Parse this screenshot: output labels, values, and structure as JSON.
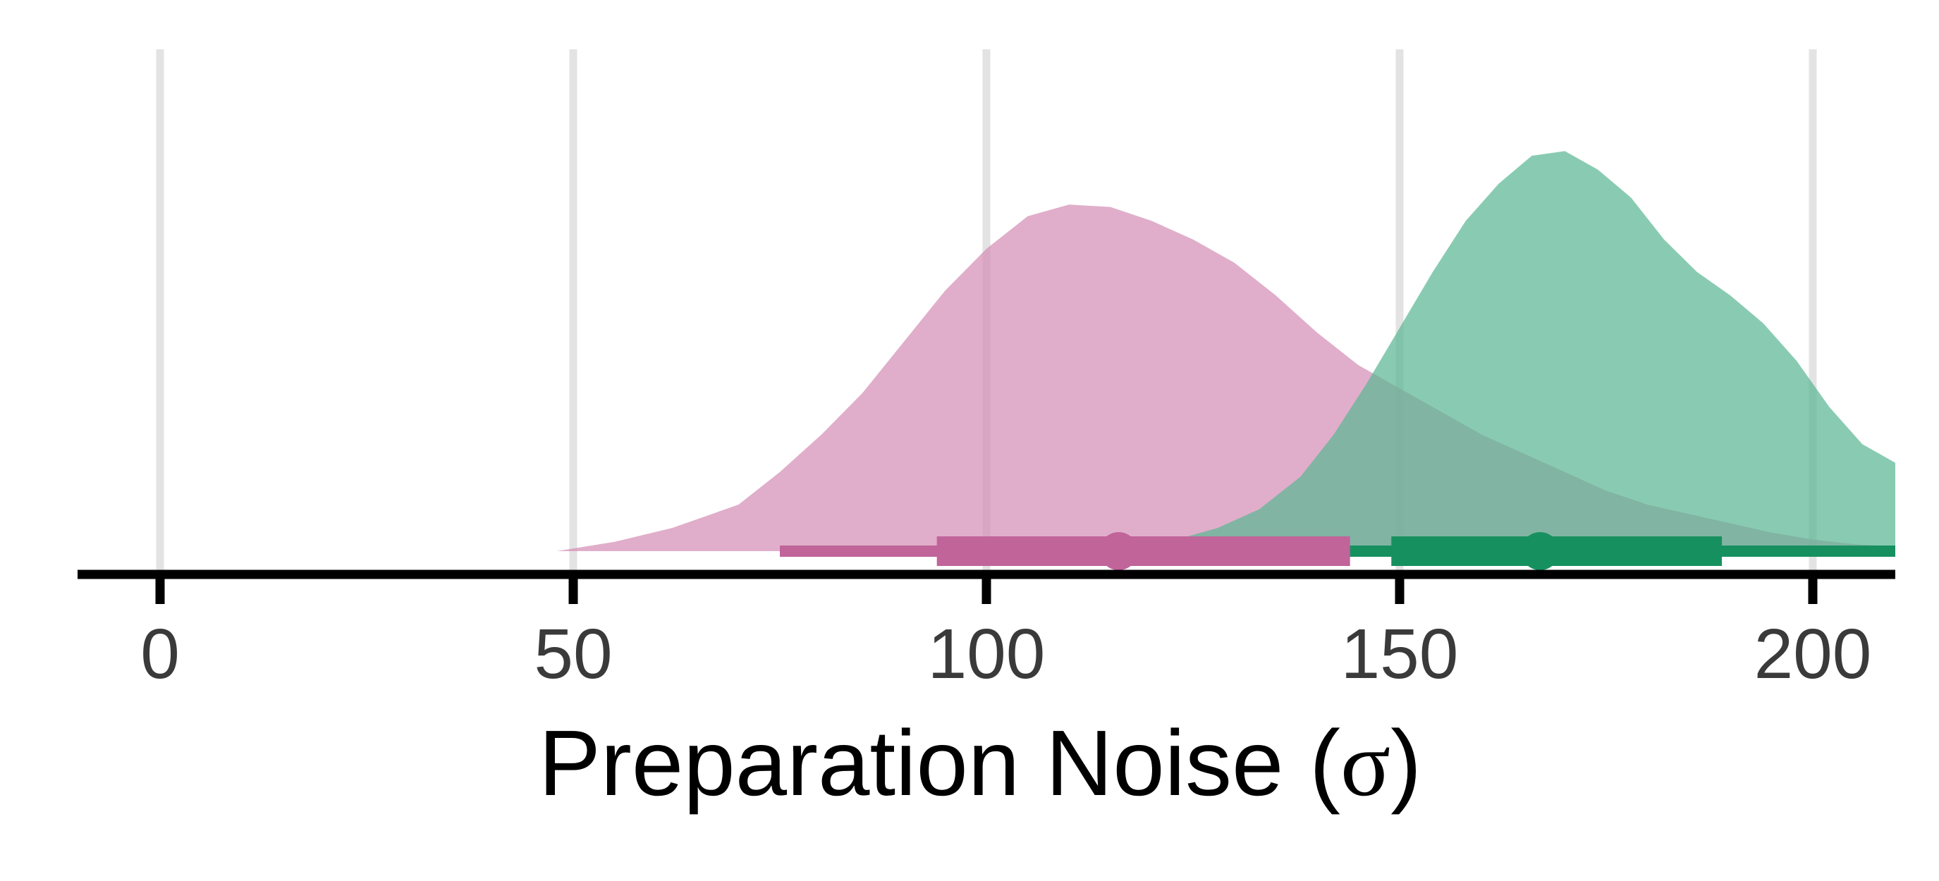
{
  "chart_data": {
    "type": "area",
    "xlabel": "Preparation Noise (",
    "xlabel_symbol": "σ",
    "xlabel_close": ")",
    "xlim": [
      -10,
      210
    ],
    "xticks": [
      0,
      50,
      100,
      150,
      200
    ],
    "xtick_labels": [
      "0",
      "50",
      "100",
      "150",
      "200"
    ],
    "grid": "vertical",
    "series": [
      {
        "color": "#d48fb6",
        "interval_color": "#c0649a",
        "density": [
          [
            48,
            0.0
          ],
          [
            55,
            0.02
          ],
          [
            62,
            0.05
          ],
          [
            70,
            0.1
          ],
          [
            75,
            0.17
          ],
          [
            80,
            0.25
          ],
          [
            85,
            0.34
          ],
          [
            90,
            0.45
          ],
          [
            95,
            0.56
          ],
          [
            100,
            0.65
          ],
          [
            105,
            0.72
          ],
          [
            110,
            0.745
          ],
          [
            115,
            0.74
          ],
          [
            120,
            0.71
          ],
          [
            125,
            0.67
          ],
          [
            130,
            0.62
          ],
          [
            135,
            0.55
          ],
          [
            140,
            0.47
          ],
          [
            145,
            0.4
          ],
          [
            150,
            0.35
          ],
          [
            155,
            0.3
          ],
          [
            160,
            0.25
          ],
          [
            165,
            0.21
          ],
          [
            170,
            0.17
          ],
          [
            175,
            0.13
          ],
          [
            180,
            0.1
          ],
          [
            185,
            0.08
          ],
          [
            190,
            0.06
          ],
          [
            195,
            0.04
          ],
          [
            200,
            0.025
          ],
          [
            205,
            0.015
          ],
          [
            210,
            0.01
          ]
        ],
        "point": 116,
        "interval_thick": [
          94,
          144
        ],
        "interval_thin": [
          75,
          210
        ]
      },
      {
        "color": "#5cb794",
        "interval_color": "#17905f",
        "density": [
          [
            115,
            0.0
          ],
          [
            118,
            0.005
          ],
          [
            122,
            0.02
          ],
          [
            128,
            0.05
          ],
          [
            133,
            0.09
          ],
          [
            138,
            0.16
          ],
          [
            142,
            0.25
          ],
          [
            146,
            0.36
          ],
          [
            150,
            0.48
          ],
          [
            154,
            0.6
          ],
          [
            158,
            0.71
          ],
          [
            162,
            0.79
          ],
          [
            166,
            0.85
          ],
          [
            170,
            0.86
          ],
          [
            174,
            0.82
          ],
          [
            178,
            0.76
          ],
          [
            182,
            0.67
          ],
          [
            186,
            0.6
          ],
          [
            190,
            0.55
          ],
          [
            194,
            0.49
          ],
          [
            198,
            0.41
          ],
          [
            202,
            0.31
          ],
          [
            206,
            0.23
          ],
          [
            210,
            0.19
          ]
        ],
        "point": 167,
        "interval_thick": [
          149,
          189
        ],
        "interval_thin": [
          144,
          210
        ]
      }
    ]
  }
}
